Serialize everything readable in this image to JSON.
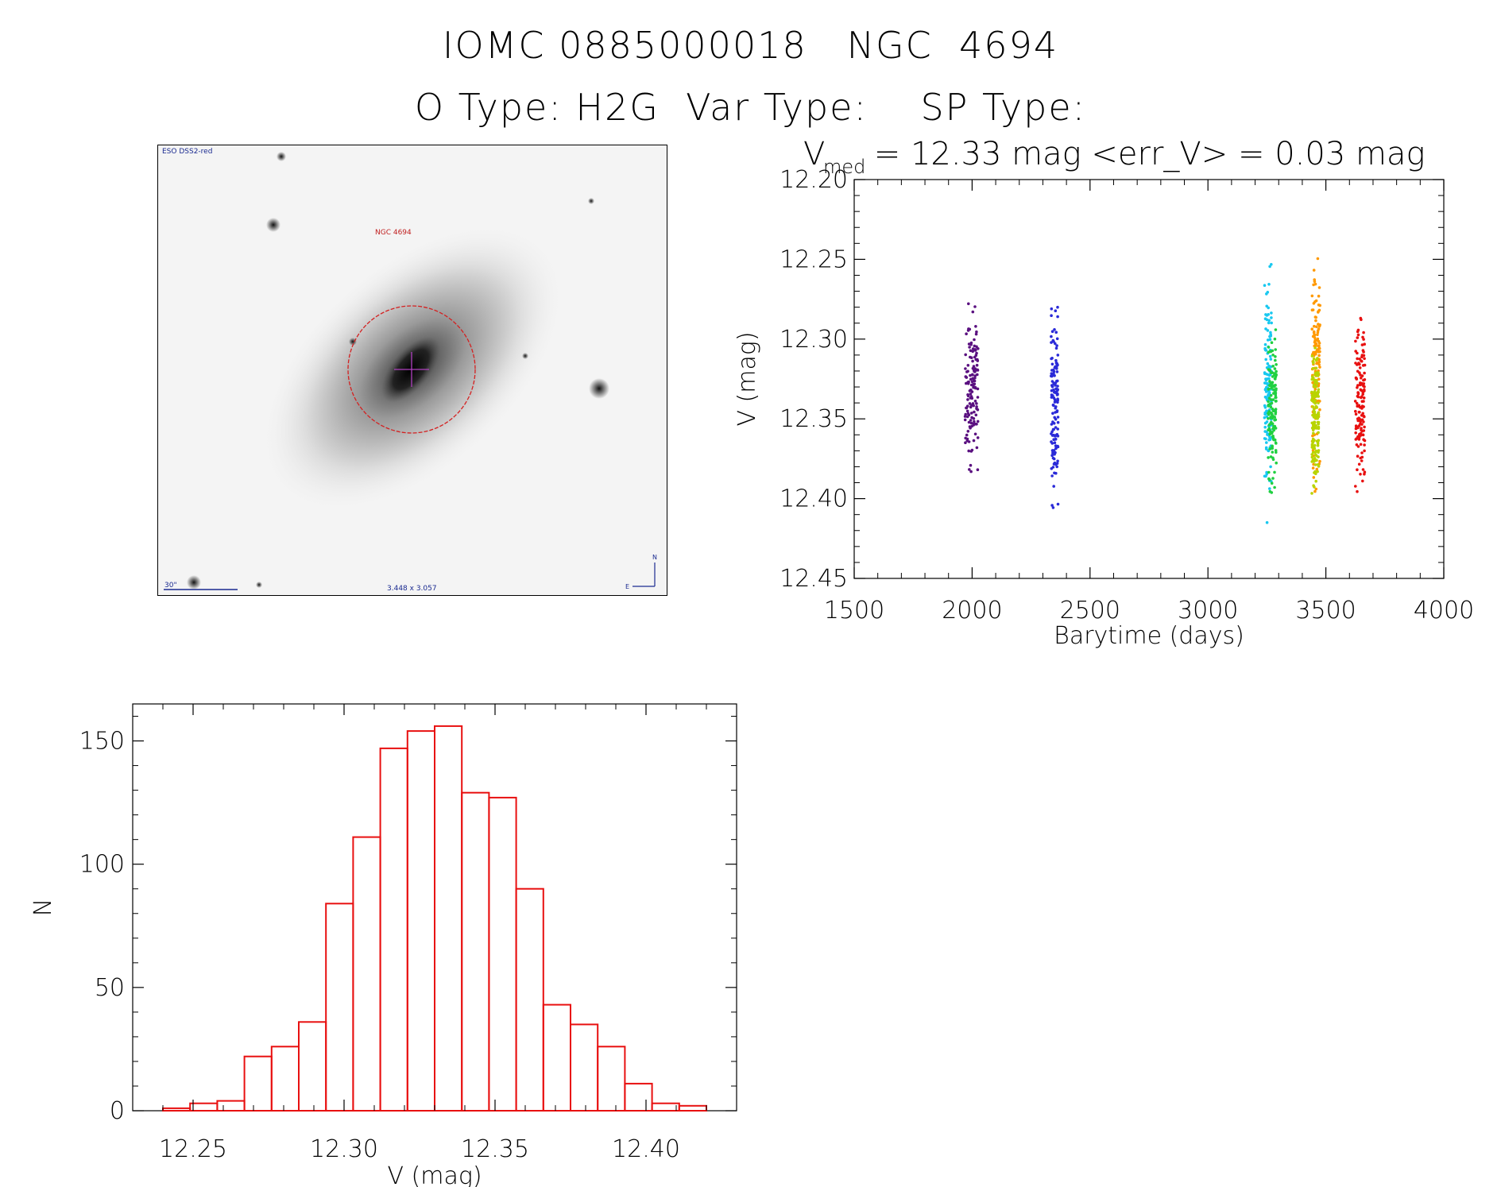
{
  "header": {
    "line1": "IOMC 0885000018   NGC  4694",
    "line2": "O Type: H2G  Var Type:    SP Type:"
  },
  "thumbnail": {
    "survey_label": "ESO DSS2-red",
    "object_label": "NGC 4694",
    "scale_label": "30\"",
    "bottom_label": "3.448 x 3.057",
    "compass_n": "N",
    "compass_e": "E",
    "circle_color": "#d42020",
    "cross_color": "#b040c0"
  },
  "chart_data": [
    {
      "type": "scatter",
      "title_main": "V",
      "title_sub": "med",
      "title_rest": " = 12.33 mag <err_V> = 0.03 mag",
      "xlabel": "Barytime (days)",
      "ylabel": "V (mag)",
      "xlim": [
        1500,
        4000
      ],
      "ylim": [
        12.45,
        12.2
      ],
      "y_inverted": true,
      "xticks": [
        "1500",
        "2000",
        "2500",
        "3000",
        "3500",
        "4000"
      ],
      "yticks": [
        "12.20",
        "12.25",
        "12.30",
        "12.35",
        "12.40",
        "12.45"
      ],
      "series": [
        {
          "color": "#5a1080",
          "x_range": [
            1970,
            2025
          ],
          "y_range": [
            12.27,
            12.39
          ]
        },
        {
          "color": "#2a2ad8",
          "x_range": [
            2335,
            2365
          ],
          "y_range": [
            12.27,
            12.42
          ]
        },
        {
          "color": "#18c8f0",
          "x_range": [
            3240,
            3270
          ],
          "y_range": [
            12.25,
            12.415
          ]
        },
        {
          "color": "#20d040",
          "x_range": [
            3255,
            3290
          ],
          "y_range": [
            12.28,
            12.4
          ]
        },
        {
          "color": "#ff9900",
          "x_range": [
            3440,
            3475
          ],
          "y_range": [
            12.24,
            12.4
          ]
        },
        {
          "color": "#b8d400",
          "x_range": [
            3440,
            3470
          ],
          "y_range": [
            12.3,
            12.4
          ]
        },
        {
          "color": "#e81010",
          "x_range": [
            3625,
            3665
          ],
          "y_range": [
            12.27,
            12.415
          ]
        }
      ]
    },
    {
      "type": "bar",
      "subtype": "histogram",
      "xlabel": "V (mag)",
      "ylabel": "N",
      "xlim": [
        12.23,
        12.43
      ],
      "ylim": [
        0,
        165
      ],
      "xticks": [
        "12.25",
        "12.30",
        "12.35",
        "12.40"
      ],
      "yticks": [
        "0",
        "50",
        "100",
        "150"
      ],
      "bar_color": "#e81010",
      "bin_start": 12.24,
      "bin_width": 0.009,
      "values": [
        1,
        3,
        4,
        22,
        26,
        36,
        84,
        111,
        147,
        154,
        156,
        129,
        127,
        90,
        43,
        35,
        26,
        11,
        3,
        2
      ]
    }
  ]
}
